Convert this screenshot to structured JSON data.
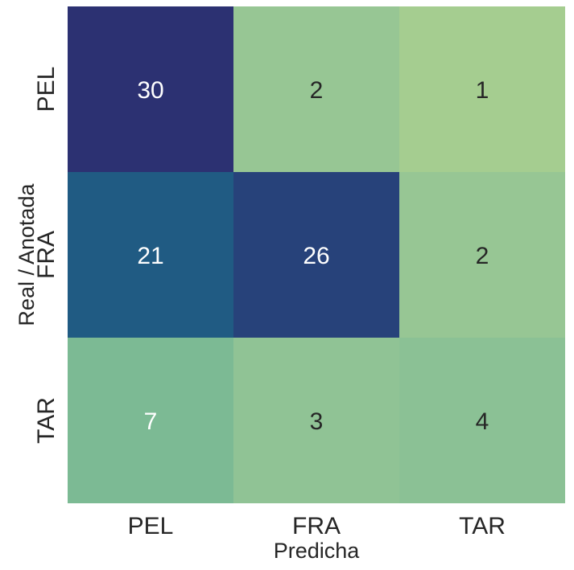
{
  "chart_data": {
    "type": "heatmap",
    "title": "",
    "xlabel": "Predicha",
    "ylabel": "Real / Anotada",
    "x_categories": [
      "PEL",
      "FRA",
      "TAR"
    ],
    "y_categories": [
      "PEL",
      "FRA",
      "TAR"
    ],
    "values": [
      [
        30,
        2,
        1
      ],
      [
        21,
        26,
        2
      ],
      [
        7,
        3,
        4
      ]
    ],
    "value_range": [
      1,
      30
    ],
    "colormap": "crest",
    "colorbar": false,
    "grid": false,
    "annotations": true,
    "colors": {
      "text_dark": "#262626",
      "text_light": "#ffffff",
      "scale": [
        "#a5cd90",
        "#9ac893",
        "#8ec295",
        "#84be94",
        "#6fb395",
        "#2a8a92",
        "#1b6b88",
        "#244c7f",
        "#2c3172"
      ]
    }
  }
}
